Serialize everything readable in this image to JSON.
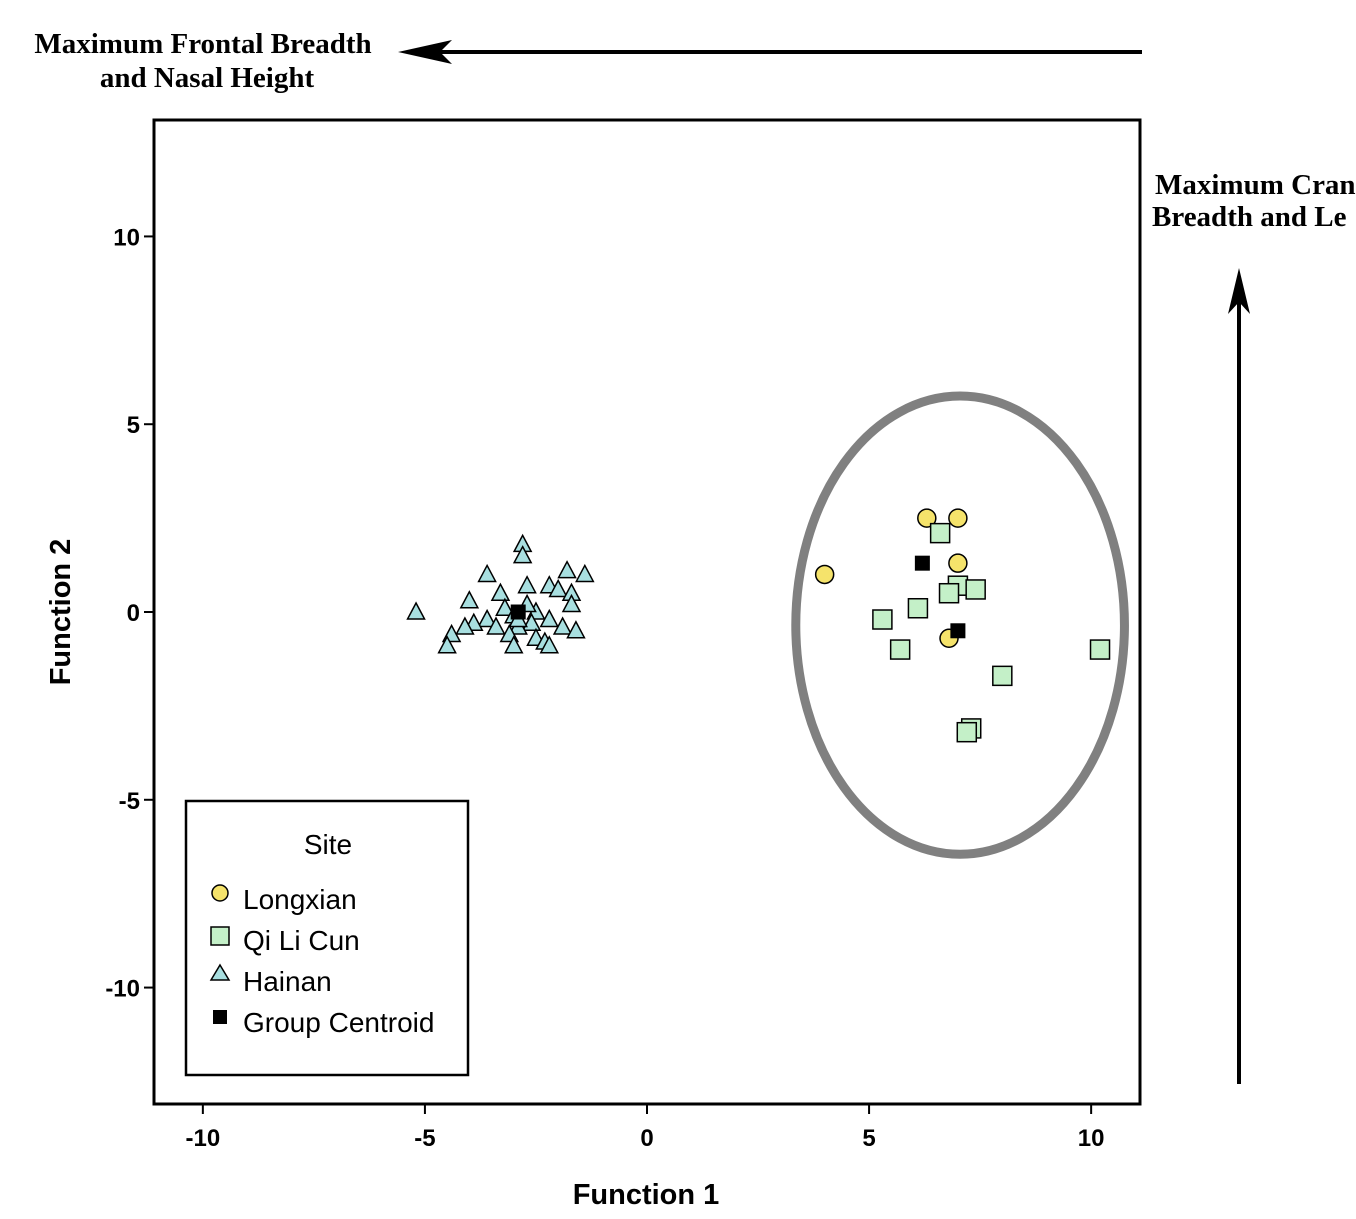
{
  "chart_data": {
    "type": "scatter",
    "xlabel": "Function 1",
    "ylabel": "Function 2",
    "xlim": [
      -11.1,
      11.1
    ],
    "ylim": [
      -13.1,
      13.1
    ],
    "xticks": [
      -10,
      -5,
      0,
      5,
      10
    ],
    "yticks": [
      10,
      5,
      0,
      -5,
      -10
    ],
    "grid": false,
    "legend": {
      "title": "Site",
      "placement": "bottom-left",
      "entries": [
        "Longxian",
        "Qi Li Cun",
        "Hainan",
        "Group Centroid"
      ]
    },
    "colors": {
      "Longxian": "#f5e36b",
      "Qi Li Cun": "#c4f0c8",
      "Hainan": "#a8dfe0",
      "Group Centroid": "#000000",
      "ellipse": "#808080"
    },
    "series": [
      {
        "name": "Longxian",
        "marker": "circle",
        "points": [
          [
            6.3,
            2.5
          ],
          [
            7.0,
            2.5
          ],
          [
            7.0,
            1.3
          ],
          [
            4.0,
            1.0
          ],
          [
            6.8,
            -0.7
          ]
        ]
      },
      {
        "name": "Qi Li Cun",
        "marker": "square",
        "points": [
          [
            6.6,
            2.1
          ],
          [
            7.0,
            0.7
          ],
          [
            6.8,
            0.5
          ],
          [
            7.4,
            0.6
          ],
          [
            6.1,
            0.1
          ],
          [
            5.3,
            -0.2
          ],
          [
            5.7,
            -1.0
          ],
          [
            8.0,
            -1.7
          ],
          [
            10.2,
            -1.0
          ],
          [
            7.3,
            -3.1
          ],
          [
            7.2,
            -3.2
          ]
        ]
      },
      {
        "name": "Hainan",
        "marker": "triangle",
        "points": [
          [
            -2.8,
            1.8
          ],
          [
            -2.8,
            1.5
          ],
          [
            -1.8,
            1.1
          ],
          [
            -1.4,
            1.0
          ],
          [
            -3.6,
            1.0
          ],
          [
            -2.2,
            0.7
          ],
          [
            -2.7,
            0.7
          ],
          [
            -2.0,
            0.6
          ],
          [
            -1.7,
            0.5
          ],
          [
            -3.3,
            0.5
          ],
          [
            -4.0,
            0.3
          ],
          [
            -1.7,
            0.2
          ],
          [
            -3.2,
            0.1
          ],
          [
            -5.2,
            0.0
          ],
          [
            -2.5,
            0.0
          ],
          [
            -3.0,
            -0.1
          ],
          [
            -3.6,
            -0.2
          ],
          [
            -2.2,
            -0.2
          ],
          [
            -2.6,
            -0.3
          ],
          [
            -3.9,
            -0.3
          ],
          [
            -4.1,
            -0.4
          ],
          [
            -1.9,
            -0.4
          ],
          [
            -3.4,
            -0.4
          ],
          [
            -2.9,
            -0.4
          ],
          [
            -1.6,
            -0.5
          ],
          [
            -3.1,
            -0.6
          ],
          [
            -4.4,
            -0.6
          ],
          [
            -2.5,
            -0.7
          ],
          [
            -2.3,
            -0.8
          ],
          [
            -2.2,
            -0.9
          ],
          [
            -3.0,
            -0.9
          ],
          [
            -4.5,
            -0.9
          ],
          [
            -2.9,
            -0.2
          ],
          [
            -2.7,
            0.2
          ]
        ]
      },
      {
        "name": "Group Centroid",
        "marker": "filled-square",
        "points": [
          [
            -2.9,
            0.0
          ],
          [
            6.2,
            1.3
          ],
          [
            7.0,
            -0.5
          ]
        ]
      }
    ],
    "ellipse": {
      "center": [
        7.05,
        -0.35
      ],
      "rx": 3.7,
      "ry": 6.1
    },
    "annotations": {
      "top_arrow_label": [
        "Maximum Frontal Breadth",
        "and Nasal Height"
      ],
      "right_arrow_label": [
        "Maximum Cran",
        "Breadth and Le"
      ]
    }
  }
}
